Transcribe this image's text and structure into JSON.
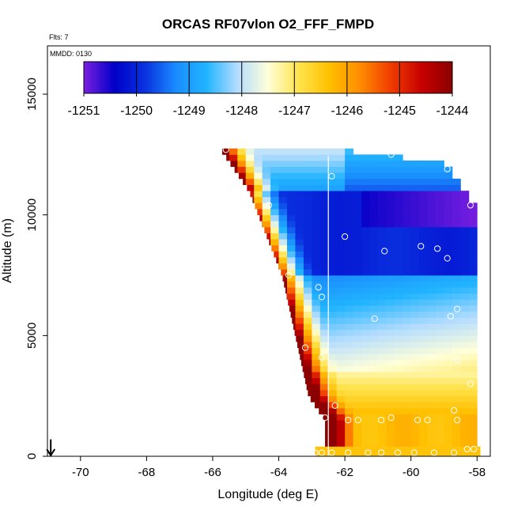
{
  "chart_data": {
    "type": "heatmap",
    "title": "ORCAS RF07vlon O2_FFF_FMPD",
    "xlabel": "Longitude (deg E)",
    "ylabel": "Altitude (m)",
    "xlim": [
      -71,
      -57.6
    ],
    "ylim": [
      0,
      17000
    ],
    "x_ticks": [
      -70,
      -68,
      -66,
      -64,
      -62,
      -60,
      -58
    ],
    "y_ticks": [
      0,
      5000,
      10000,
      15000
    ],
    "flts_note": "Flts: 7",
    "date_note": "MMDD: 0130",
    "colorbar": {
      "min": -1251,
      "max": -1244,
      "ticks": [
        -1251,
        -1250,
        -1249,
        -1248,
        -1247,
        -1246,
        -1245,
        -1244
      ],
      "palette": [
        "#7b1fe0",
        "#0000c8",
        "#0a32e0",
        "#1a8cff",
        "#21b4ff",
        "#b3dcff",
        "#ffffd9",
        "#ffe34d",
        "#ffc000",
        "#ff8c00",
        "#f03c00",
        "#c80000",
        "#8b0000"
      ]
    },
    "field": {
      "x_min": -65.9,
      "x_max": -57.9,
      "alt_step": 250,
      "lon_step": 0.25,
      "upper_edge_lon": [
        -65.8,
        -64.9,
        -63.9,
        -63.1,
        -62.6,
        -62.6,
        -62.6
      ],
      "upper_edge_alt": [
        12800,
        11000,
        7500,
        2500,
        1500,
        500,
        0
      ],
      "top_boundary_lon": [
        -65.8,
        -64.0,
        -62.0,
        -60.5,
        -59.0,
        -58.5,
        -58.3
      ],
      "top_boundary_alt": [
        12800,
        12600,
        12550,
        12300,
        12000,
        11200,
        10500
      ],
      "vertical_line_lon": -62.5,
      "surface_strip_lon": [
        -62.9,
        -57.9
      ],
      "surface_strip_alt": [
        0,
        400
      ]
    },
    "markers": [
      {
        "lon": -65.6,
        "alt": 12700
      },
      {
        "lon": -62.4,
        "alt": 11600
      },
      {
        "lon": -60.6,
        "alt": 12500
      },
      {
        "lon": -58.9,
        "alt": 11900
      },
      {
        "lon": -64.3,
        "alt": 10400
      },
      {
        "lon": -58.2,
        "alt": 10400
      },
      {
        "lon": -62.0,
        "alt": 9100
      },
      {
        "lon": -60.8,
        "alt": 8500
      },
      {
        "lon": -59.7,
        "alt": 8700
      },
      {
        "lon": -59.2,
        "alt": 8600
      },
      {
        "lon": -58.9,
        "alt": 8200
      },
      {
        "lon": -63.7,
        "alt": 7500
      },
      {
        "lon": -62.8,
        "alt": 7000
      },
      {
        "lon": -62.7,
        "alt": 6600
      },
      {
        "lon": -58.6,
        "alt": 6100
      },
      {
        "lon": -58.8,
        "alt": 5800
      },
      {
        "lon": -61.1,
        "alt": 5700
      },
      {
        "lon": -63.2,
        "alt": 4500
      },
      {
        "lon": -62.7,
        "alt": 4100
      },
      {
        "lon": -58.6,
        "alt": 4000
      },
      {
        "lon": -58.2,
        "alt": 3000
      },
      {
        "lon": -62.3,
        "alt": 2100
      },
      {
        "lon": -62.6,
        "alt": 1600
      },
      {
        "lon": -61.9,
        "alt": 1500
      },
      {
        "lon": -61.6,
        "alt": 1500
      },
      {
        "lon": -60.9,
        "alt": 1500
      },
      {
        "lon": -60.6,
        "alt": 1600
      },
      {
        "lon": -59.8,
        "alt": 1500
      },
      {
        "lon": -59.5,
        "alt": 1500
      },
      {
        "lon": -58.7,
        "alt": 1900
      },
      {
        "lon": -58.6,
        "alt": 1500
      },
      {
        "lon": -62.9,
        "alt": 150
      },
      {
        "lon": -62.7,
        "alt": 150
      },
      {
        "lon": -62.4,
        "alt": 150
      },
      {
        "lon": -61.9,
        "alt": 150
      },
      {
        "lon": -61.3,
        "alt": 150
      },
      {
        "lon": -60.9,
        "alt": 150
      },
      {
        "lon": -60.4,
        "alt": 150
      },
      {
        "lon": -59.9,
        "alt": 150
      },
      {
        "lon": -59.3,
        "alt": 150
      },
      {
        "lon": -58.7,
        "alt": 150
      },
      {
        "lon": -58.3,
        "alt": 300
      },
      {
        "lon": -58.1,
        "alt": 300
      }
    ],
    "arrow": {
      "lon": -70.9,
      "alt": 700
    }
  }
}
